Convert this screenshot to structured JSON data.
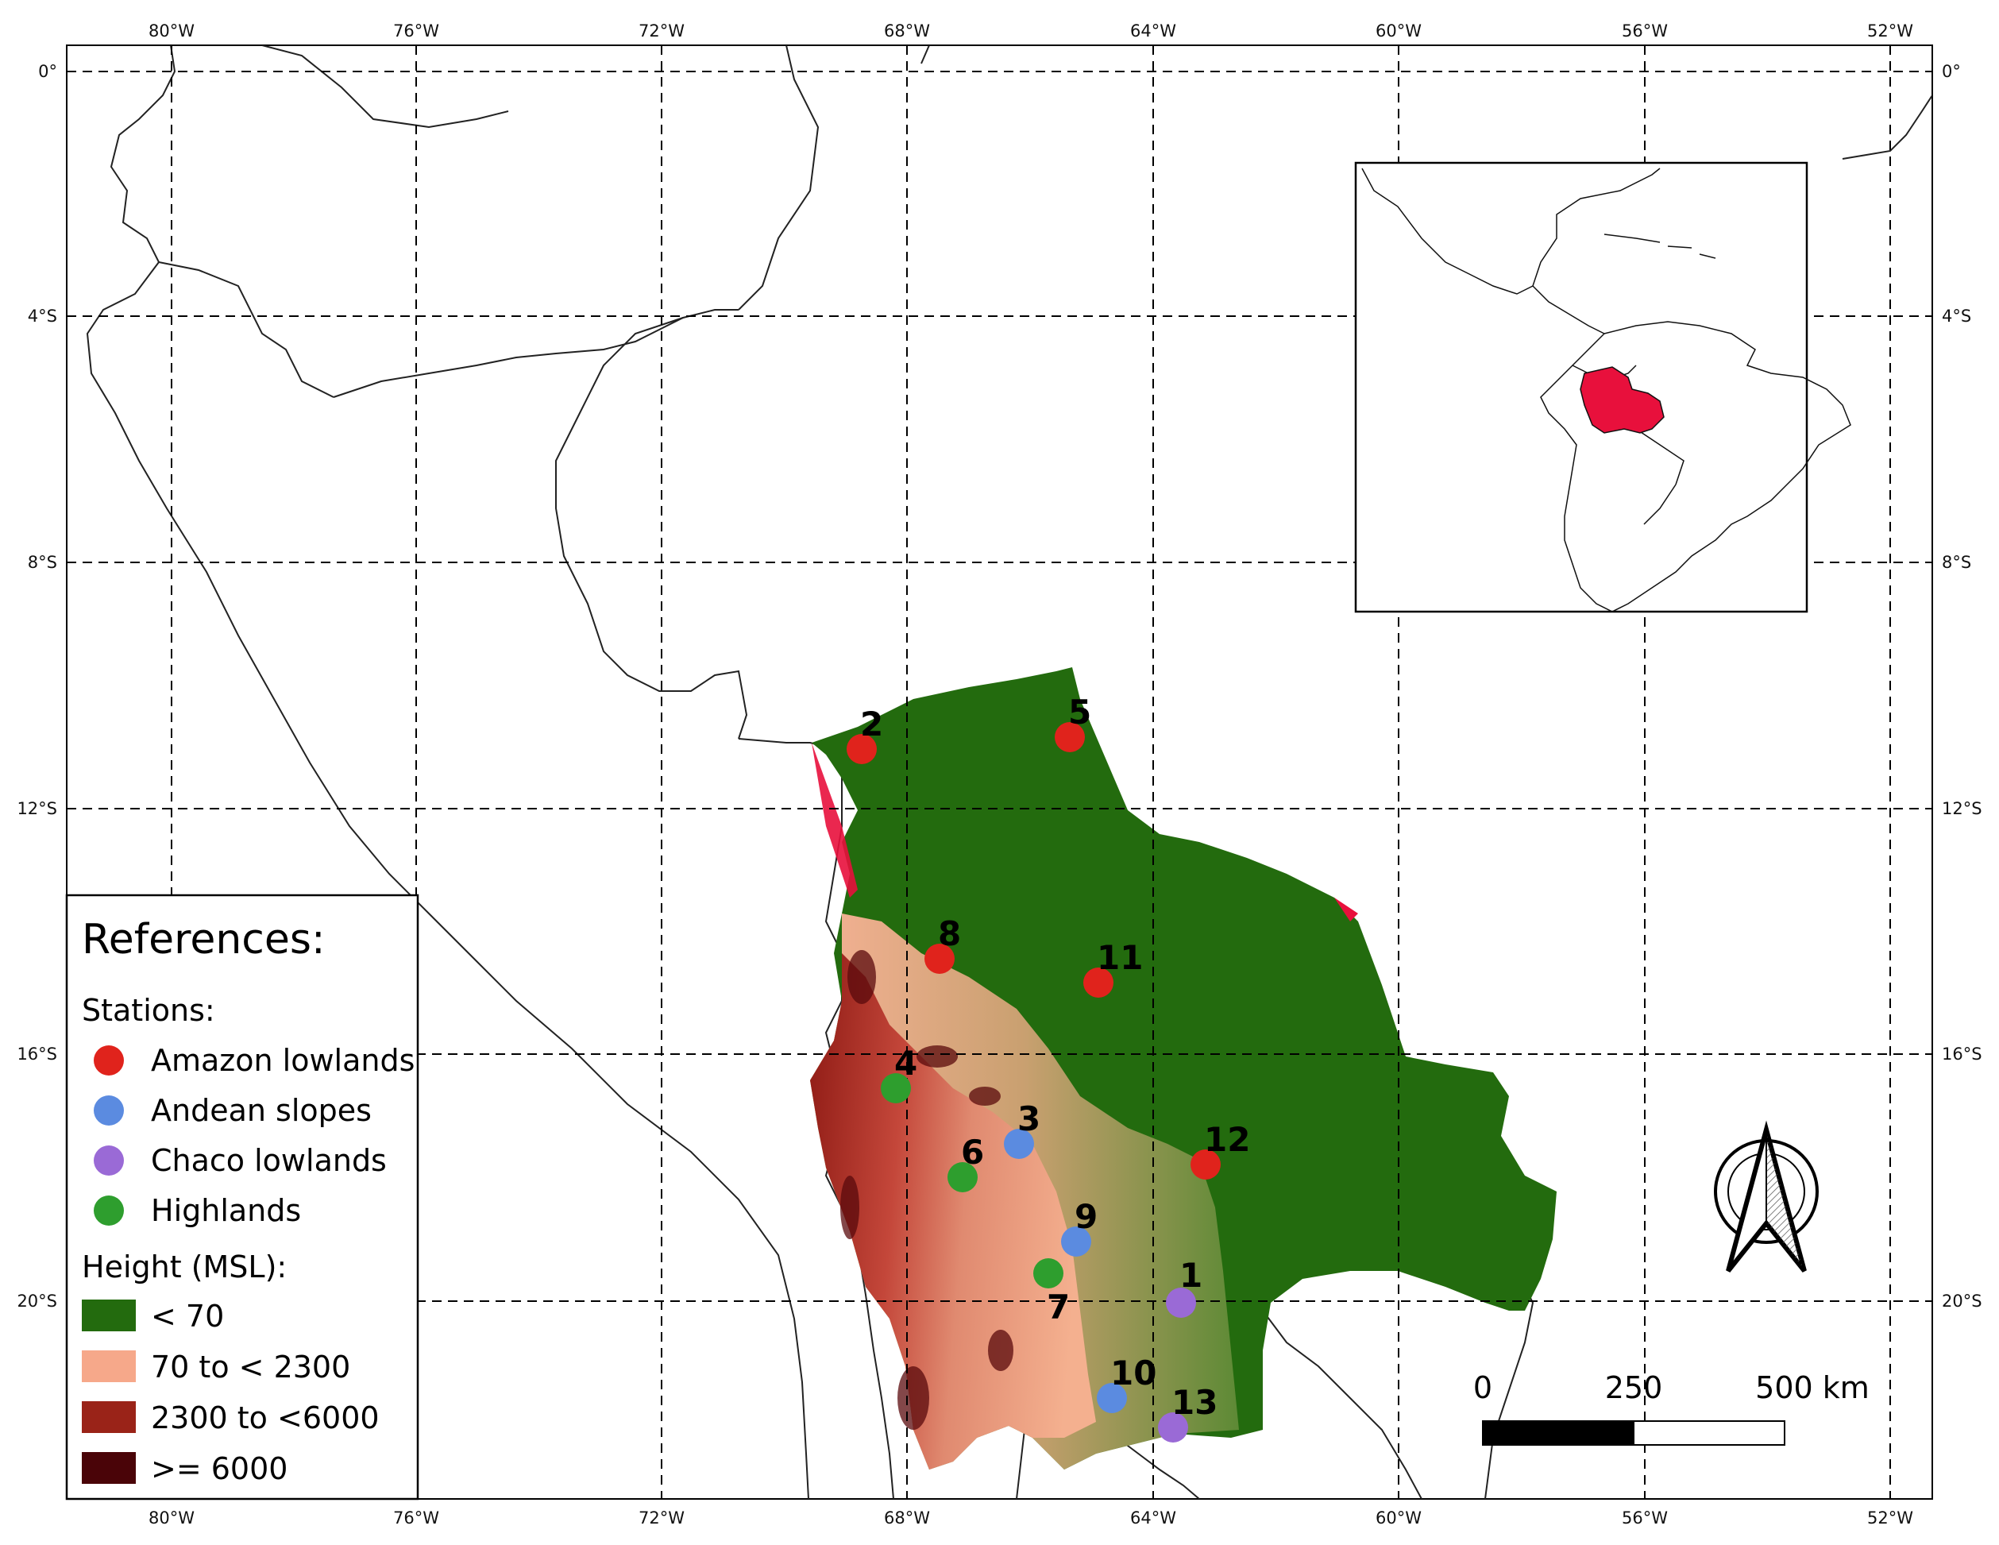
{
  "lon_ticks": [
    "80°W",
    "76°W",
    "72°W",
    "68°W",
    "64°W",
    "60°W",
    "56°W",
    "52°W"
  ],
  "lat_ticks": [
    "0°",
    "4°S",
    "8°S",
    "12°S",
    "16°S",
    "20°S"
  ],
  "stations": [
    {
      "id": "1",
      "region": "Chaco lowlands"
    },
    {
      "id": "2",
      "region": "Amazon lowlands"
    },
    {
      "id": "3",
      "region": "Andean slopes"
    },
    {
      "id": "4",
      "region": "Highlands"
    },
    {
      "id": "5",
      "region": "Amazon lowlands"
    },
    {
      "id": "6",
      "region": "Highlands"
    },
    {
      "id": "7",
      "region": "Highlands"
    },
    {
      "id": "8",
      "region": "Amazon lowlands"
    },
    {
      "id": "9",
      "region": "Andean slopes"
    },
    {
      "id": "10",
      "region": "Andean slopes"
    },
    {
      "id": "11",
      "region": "Amazon lowlands"
    },
    {
      "id": "12",
      "region": "Amazon lowlands"
    },
    {
      "id": "13",
      "region": "Chaco lowlands"
    }
  ],
  "legend": {
    "title": "References:",
    "stations_title": "Stations:",
    "station_types": [
      {
        "label": "Amazon lowlands",
        "color": "#e0231c"
      },
      {
        "label": "Andean slopes",
        "color": "#5b8be0"
      },
      {
        "label": "Chaco lowlands",
        "color": "#9a6ad6"
      },
      {
        "label": "Highlands",
        "color": "#2e9e2e"
      }
    ],
    "height_title": "Height (MSL):",
    "height_classes": [
      {
        "label": "< 70",
        "color": "#236b0e"
      },
      {
        "label": "70 to < 2300",
        "color": "#f6a88a"
      },
      {
        "label": "2300 to <6000",
        "color": "#9a2318"
      },
      {
        "label": ">= 6000",
        "color": "#4a0408"
      }
    ]
  },
  "scale_bar": {
    "labels": [
      "0",
      "250",
      "500 km"
    ]
  },
  "inset": {
    "highlight_color": "#e8103c"
  },
  "icons": {
    "north_arrow": "north-arrow-icon"
  }
}
